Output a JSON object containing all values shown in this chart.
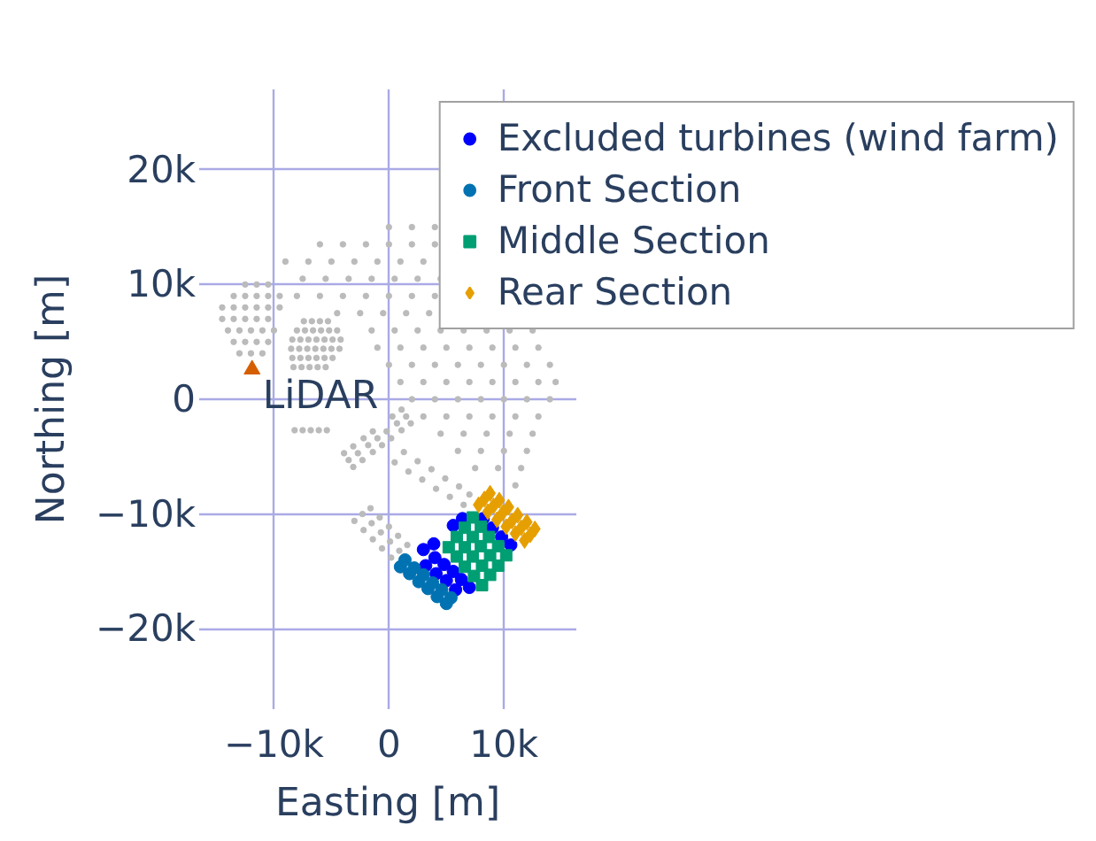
{
  "chart_data": {
    "type": "scatter",
    "xlabel": "Easting [m]",
    "ylabel": "Northing [m]",
    "xlim": [
      -16500,
      16300
    ],
    "ylim": [
      -27000,
      27000
    ],
    "xticks": [
      {
        "value": -10000,
        "label": "−10k"
      },
      0,
      {
        "value": 10000,
        "label": "10k"
      }
    ],
    "yticks": [
      {
        "value": -20000,
        "label": "−20k"
      },
      {
        "value": -10000,
        "label": "−10k"
      },
      0,
      {
        "value": 10000,
        "label": "10k"
      },
      {
        "value": 20000,
        "label": "20k"
      }
    ],
    "grid": true,
    "legend": "top right",
    "annotations": [
      {
        "text": "LiDAR",
        "x": -11900,
        "y": 2600
      }
    ],
    "series": [
      {
        "color": "#bbbbbb",
        "marker": "circle",
        "x": [
          0,
          2000,
          4000,
          -6000,
          -4000,
          -2000,
          0,
          2000,
          4000,
          -9000,
          -7000,
          -5000,
          -3000,
          -1000,
          1000,
          3000,
          -7500,
          -5500,
          -3500,
          -1500,
          500,
          2500,
          4500,
          -8000,
          -6000,
          -4000,
          -2000,
          0,
          2000,
          4000,
          -4500,
          -2500,
          -500,
          1500,
          3500,
          -1500,
          500,
          2500,
          4500,
          6500,
          8500,
          10500,
          12500,
          -1000,
          1000,
          3000,
          5000,
          7000,
          9000,
          11000,
          13000,
          0,
          2000,
          4000,
          6000,
          8000,
          10000,
          12000,
          14000,
          1000,
          3000,
          5000,
          7000,
          9000,
          11000,
          13000,
          14500,
          2000,
          4000,
          6000,
          8000,
          10000,
          12000,
          14000,
          3000,
          5000,
          7000,
          9000,
          11000,
          13000,
          4500,
          6500,
          8500,
          10500,
          12500,
          6000,
          8000,
          10000,
          12000,
          7500,
          9500,
          11500,
          11000
        ],
        "values": [
          15000,
          15000,
          15000,
          13500,
          13500,
          13500,
          13500,
          13500,
          13500,
          12000,
          12000,
          12000,
          12000,
          12000,
          12000,
          12000,
          10500,
          10500,
          10500,
          10500,
          10500,
          10500,
          10500,
          9000,
          9000,
          9000,
          9000,
          9000,
          9000,
          9000,
          7500,
          7500,
          7500,
          7500,
          7500,
          6000,
          6000,
          6000,
          6000,
          6000,
          6000,
          6000,
          6000,
          4500,
          4500,
          4500,
          4500,
          4500,
          4500,
          4500,
          4500,
          3000,
          3000,
          3000,
          3000,
          3000,
          3000,
          3000,
          3000,
          1500,
          1500,
          1500,
          1500,
          1500,
          1500,
          1500,
          1500,
          0,
          0,
          0,
          0,
          0,
          0,
          0,
          -1500,
          -1500,
          -1500,
          -1500,
          -1500,
          -1500,
          -3000,
          -3000,
          -3000,
          -3000,
          -3000,
          -4500,
          -4500,
          -4500,
          -4500,
          -6000,
          -6000,
          -6000,
          -7500
        ]
      },
      {
        "color": "#bbbbbb",
        "marker": "circle",
        "x": [
          -12500,
          -11500,
          -10500,
          -13500,
          -12500,
          -11500,
          -10500,
          -9500,
          -14500,
          -13500,
          -12500,
          -11500,
          -10500,
          -9500,
          -14500,
          -13500,
          -12500,
          -11500,
          -10500,
          -14000,
          -13000,
          -12000,
          -11000,
          -10000,
          -13500,
          -12500,
          -11500,
          -10500,
          -13000,
          -12000,
          -11000
        ],
        "values": [
          10000,
          10000,
          10000,
          9000,
          9000,
          9000,
          9000,
          9000,
          8000,
          8000,
          8000,
          8000,
          8000,
          8000,
          7000,
          7000,
          7000,
          7000,
          7000,
          6000,
          6000,
          6000,
          6000,
          6000,
          5000,
          5000,
          5000,
          5000,
          4000,
          4000,
          4000
        ]
      },
      {
        "color": "#bbbbbb",
        "marker": "circle",
        "x": [
          -7400,
          -6700,
          -6000,
          -5300,
          -8000,
          -7300,
          -6600,
          -5900,
          -5200,
          -4500,
          -8400,
          -7700,
          -7000,
          -6300,
          -5600,
          -4900,
          -4200,
          -8500,
          -7800,
          -7100,
          -6400,
          -5700,
          -5000,
          -4300,
          -8400,
          -7700,
          -7000,
          -6300,
          -5600,
          -4900,
          -8300,
          -7600,
          -6900,
          -6200,
          -5500,
          -8200,
          -7500,
          -6800,
          -6100,
          -5400
        ],
        "values": [
          6800,
          6800,
          6800,
          6800,
          6000,
          6000,
          6000,
          6000,
          6000,
          6000,
          5200,
          5200,
          5200,
          5200,
          5200,
          5200,
          5200,
          4400,
          4400,
          4400,
          4400,
          4400,
          4400,
          4400,
          3600,
          3600,
          3600,
          3600,
          3600,
          3600,
          2800,
          2800,
          2800,
          2800,
          2800,
          -2700,
          -2700,
          -2700,
          -2700,
          -2700
        ]
      },
      {
        "color": "#bbbbbb",
        "marker": "circle",
        "x": [
          1100,
          300,
          -1400,
          -2200,
          -3100,
          -3900,
          1500,
          700,
          -200,
          -1000,
          -1800,
          -2700,
          -3500,
          1900,
          1100,
          200,
          -600,
          -1400,
          -2300,
          -3100,
          500,
          1700,
          2900,
          4100,
          5300,
          6500,
          1300,
          2500,
          3700,
          4900,
          6100,
          7000,
          -2300,
          -1500,
          -700,
          100,
          900,
          -1600,
          -800,
          0,
          800,
          1600,
          -3000,
          -2200,
          -1400,
          -600,
          200
        ],
        "values": [
          -900,
          -1500,
          -2800,
          -3400,
          -4100,
          -4700,
          -1500,
          -2100,
          -2800,
          -3400,
          -4000,
          -4700,
          -5300,
          -2100,
          -2700,
          -3400,
          -4000,
          -4600,
          -5300,
          -5900,
          -5500,
          -6300,
          -7000,
          -7800,
          -8500,
          -9200,
          -4600,
          -5400,
          -6100,
          -6900,
          -7600,
          -8300,
          -10000,
          -10800,
          -11600,
          -12400,
          -13200,
          -9500,
          -10300,
          -11100,
          -11900,
          -12700,
          -10600,
          -11400,
          -12200,
          -13000,
          -13800
        ]
      },
      {
        "color": "#d55e00",
        "marker": "triangle",
        "x": [
          -11900
        ],
        "values": [
          2600
        ]
      },
      {
        "name": "Excluded turbines (wind farm)",
        "color": "#0000ff",
        "marker": "circle",
        "x": [
          3000,
          3900,
          4000,
          3200,
          4800,
          4100,
          5600,
          5000,
          6300,
          5800,
          7000,
          6400,
          5600,
          8200,
          9000,
          9800,
          10600
        ],
        "values": [
          -13100,
          -12600,
          -13800,
          -14500,
          -14400,
          -15200,
          -15000,
          -15800,
          -15700,
          -16600,
          -16400,
          -10400,
          -11000,
          -10400,
          -11200,
          -12000,
          -12700
        ]
      },
      {
        "name": "Front Section",
        "color": "#0072b2",
        "marker": "circle",
        "x": [
          1000,
          1800,
          2600,
          3400,
          4200,
          5000,
          1400,
          2200,
          3000,
          3800,
          4600,
          5400
        ],
        "values": [
          -14600,
          -15200,
          -15900,
          -16500,
          -17200,
          -17800,
          -14000,
          -14700,
          -15300,
          -16000,
          -16600,
          -17300
        ]
      },
      {
        "name": "Middle Section",
        "color": "#009e73",
        "marker": "square",
        "x": [
          7300,
          8000,
          8700,
          9500,
          10200,
          6600,
          7300,
          8000,
          8800,
          9500,
          5900,
          6600,
          7300,
          8100,
          8800,
          5200,
          5900,
          6600,
          7400,
          8100
        ],
        "values": [
          -10300,
          -11100,
          -12000,
          -12800,
          -13600,
          -11200,
          -12000,
          -12800,
          -13600,
          -14500,
          -12000,
          -12900,
          -13700,
          -14500,
          -15300,
          -12900,
          -13700,
          -14600,
          -15400,
          -16200
        ]
      },
      {
        "name": "Rear Section",
        "color": "#e69f00",
        "marker": "diamond",
        "x": [
          7800,
          8600,
          9400,
          10200,
          11000,
          11800,
          8300,
          9100,
          9900,
          10700,
          11500,
          12300,
          8800,
          9600,
          10400,
          11200,
          12000,
          12700
        ],
        "values": [
          -9200,
          -9800,
          -10500,
          -11100,
          -11700,
          -12300,
          -8700,
          -9300,
          -9900,
          -10600,
          -11200,
          -11800,
          -8200,
          -8800,
          -9400,
          -10100,
          -10700,
          -11300
        ]
      }
    ]
  }
}
